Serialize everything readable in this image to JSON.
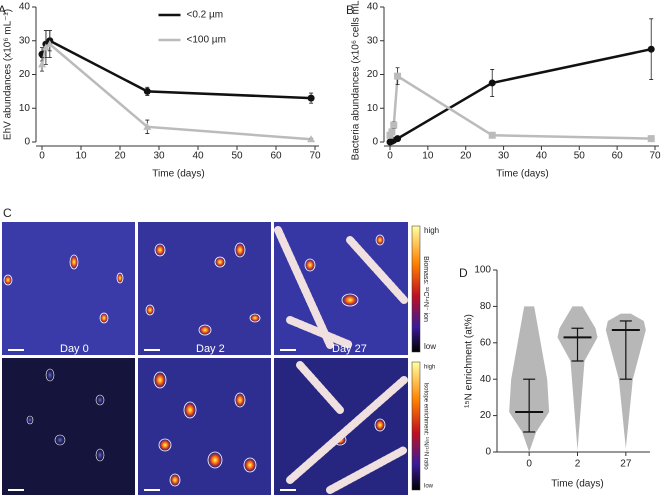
{
  "chart_data": [
    {
      "type": "line",
      "panel": "A",
      "xlabel": "Time (days)",
      "ylabel": "EhV abundances (x10⁶ mL⁻¹)",
      "xlim": [
        0,
        70
      ],
      "xticks": [
        0,
        10,
        20,
        30,
        40,
        50,
        60,
        70
      ],
      "ylim": [
        0,
        40
      ],
      "yticks": [
        0,
        10,
        20,
        30,
        40
      ],
      "legend": "upper center",
      "series": [
        {
          "name": "<0.2 µm",
          "color": "#111111",
          "marker": "circle",
          "x": [
            0,
            1,
            2,
            27,
            69
          ],
          "values": [
            26,
            29,
            30,
            15,
            13
          ],
          "errors": [
            2,
            4,
            3,
            1.2,
            1.5
          ]
        },
        {
          "name": "<100 µm",
          "color": "#bbbbbb",
          "marker": "triangle",
          "x": [
            0,
            1,
            2,
            27,
            69
          ],
          "values": [
            23,
            28,
            29,
            4.5,
            0.8
          ],
          "errors": [
            2,
            5,
            4,
            2,
            0.3
          ]
        }
      ]
    },
    {
      "type": "line",
      "panel": "B",
      "xlabel": "Time (days)",
      "ylabel": "Bacteria abundances (x10⁶ cells mL⁻¹)",
      "xlim": [
        0,
        70
      ],
      "xticks": [
        0,
        10,
        20,
        30,
        40,
        50,
        60,
        70
      ],
      "ylim": [
        0,
        40
      ],
      "yticks": [
        0,
        10,
        20,
        30,
        40
      ],
      "series": [
        {
          "color": "#111111",
          "marker": "circle",
          "x": [
            0,
            0.5,
            1,
            2,
            27,
            69
          ],
          "values": [
            0,
            0.2,
            0.5,
            1,
            17.5,
            27.5
          ],
          "errors": [
            0.2,
            0.2,
            0.3,
            0.5,
            4,
            9
          ]
        },
        {
          "color": "#bbbbbb",
          "marker": "square",
          "x": [
            0,
            0.5,
            1,
            2,
            27,
            69
          ],
          "values": [
            2,
            3,
            5,
            19.5,
            2,
            1
          ],
          "errors": [
            0.5,
            0.5,
            1,
            2.5,
            0.5,
            0.5
          ]
        }
      ]
    },
    {
      "type": "dot",
      "panel": "D",
      "xlabel": "Time (days)",
      "ylabel": "¹⁵N enrichment (at%)",
      "color": "#aaaaaa",
      "categories": [
        "0",
        "2",
        "27"
      ],
      "ylim": [
        0,
        100
      ],
      "yticks": [
        0,
        20,
        40,
        60,
        80,
        100
      ],
      "min": [
        0,
        1,
        2
      ],
      "lower": [
        11,
        50,
        40
      ],
      "median": [
        22,
        63,
        67
      ],
      "upper": [
        40,
        68,
        72
      ],
      "max": [
        80,
        80,
        76
      ]
    }
  ],
  "panel_c": {
    "panel": "C",
    "top": {
      "labels": [
        "Day 0",
        "Day 2",
        "Day 27"
      ],
      "scale_high": "high",
      "scale_low": "low",
      "scale_title": "Biomass: ¹²C¹⁴N⁻ ion"
    },
    "bottom": {
      "scale_high": "high",
      "scale_low": "low",
      "scale_title": "Isotope enrichment: ¹⁵N/¹⁴N ratio"
    }
  }
}
